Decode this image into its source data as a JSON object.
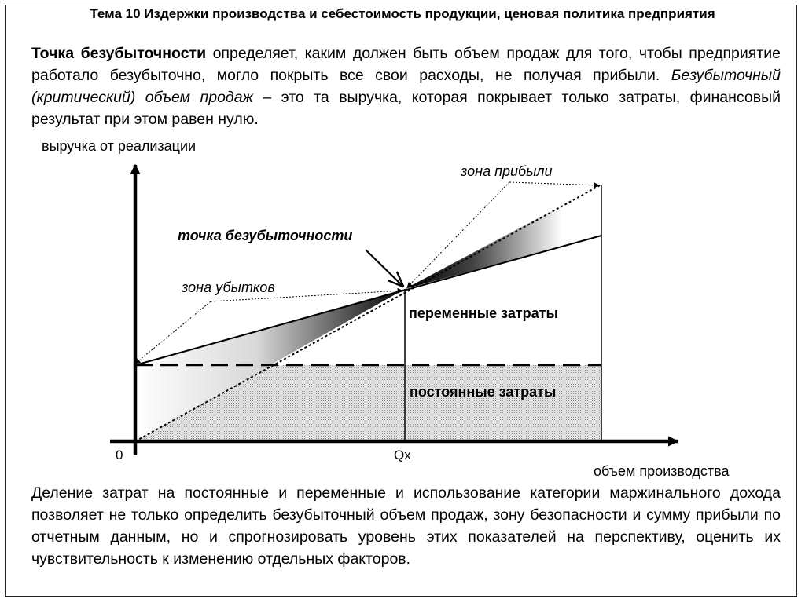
{
  "title": "Тема 10 Издержки производства и себестоимость продукции, ценовая политика предприятия",
  "intro": {
    "term": "Точка безубыточности",
    "text1": " определяет, каким должен быть объем продаж для того, чтобы предприятие работало безубыточно, могло покрыть все свои расходы, не получая прибыли. ",
    "italic": "Безубыточный (критический) объем продаж",
    "text2": " – это та выручка, которая покрывает только затраты, финансовый результат при этом равен нулю."
  },
  "diagram": {
    "y_axis_label": "выручка от реализации",
    "x_axis_label": "объем производства",
    "origin_label": "0",
    "qx_label": "Qx",
    "breakeven_label": "точка безубыточности",
    "loss_zone_label": "зона убытков",
    "profit_zone_label": "зона прибыли",
    "variable_costs_label": "переменные затраты",
    "fixed_costs_label": "постоянные затраты"
  },
  "outro": {
    "text": "Деление затрат на постоянные и переменные и использование категории маржинального дохода позволяет не только определить безубыточный объем продаж, зону безопасности и сумму прибыли по отчетным данным, но и спрогнозировать уровень этих показателей на перспективу, оценить их чувствительность к изменению отдельных факторов."
  }
}
